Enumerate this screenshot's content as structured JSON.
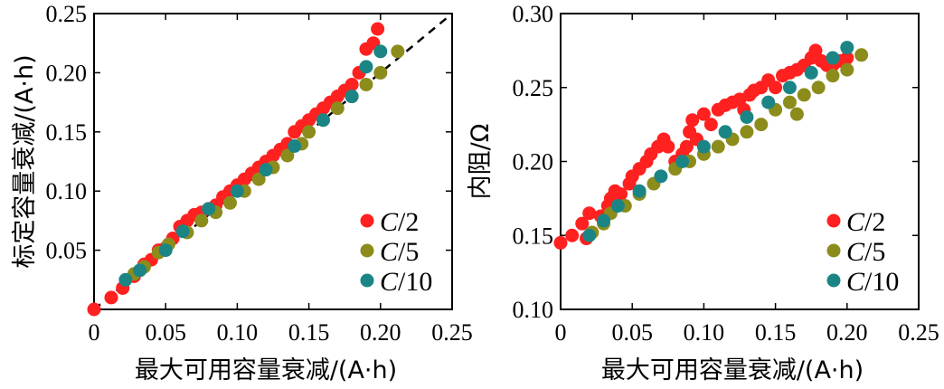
{
  "chart_data": [
    {
      "type": "scatter",
      "xlabel": "最大可用容量衰减/(A·h)",
      "ylabel": "标定容量衰减/(A·h)",
      "xlim": [
        0,
        0.25
      ],
      "ylim": [
        0,
        0.25
      ],
      "xticks": [
        "0",
        "0.05",
        "0.10",
        "0.15",
        "0.20",
        "0.25"
      ],
      "yticks": [
        "0.05",
        "0.10",
        "0.15",
        "0.20",
        "0.25"
      ],
      "legend_position": "bottom-right",
      "reference_line": {
        "style": "dashed",
        "from": [
          0,
          0
        ],
        "to": [
          0.25,
          0.25
        ]
      },
      "series": [
        {
          "name": "C/2",
          "color": "#ff2020",
          "points": [
            [
              0.0,
              0.0
            ],
            [
              0.012,
              0.01
            ],
            [
              0.02,
              0.018
            ],
            [
              0.028,
              0.028
            ],
            [
              0.035,
              0.038
            ],
            [
              0.04,
              0.042
            ],
            [
              0.045,
              0.05
            ],
            [
              0.05,
              0.052
            ],
            [
              0.055,
              0.06
            ],
            [
              0.06,
              0.07
            ],
            [
              0.065,
              0.075
            ],
            [
              0.07,
              0.08
            ],
            [
              0.075,
              0.082
            ],
            [
              0.08,
              0.085
            ],
            [
              0.085,
              0.088
            ],
            [
              0.09,
              0.095
            ],
            [
              0.095,
              0.1
            ],
            [
              0.1,
              0.105
            ],
            [
              0.105,
              0.11
            ],
            [
              0.11,
              0.115
            ],
            [
              0.115,
              0.12
            ],
            [
              0.12,
              0.125
            ],
            [
              0.125,
              0.13
            ],
            [
              0.13,
              0.135
            ],
            [
              0.135,
              0.14
            ],
            [
              0.14,
              0.15
            ],
            [
              0.145,
              0.155
            ],
            [
              0.15,
              0.16
            ],
            [
              0.155,
              0.165
            ],
            [
              0.16,
              0.17
            ],
            [
              0.165,
              0.175
            ],
            [
              0.17,
              0.18
            ],
            [
              0.175,
              0.185
            ],
            [
              0.18,
              0.19
            ],
            [
              0.185,
              0.2
            ],
            [
              0.19,
              0.22
            ],
            [
              0.195,
              0.225
            ],
            [
              0.198,
              0.237
            ]
          ]
        },
        {
          "name": "C/5",
          "color": "#8c8c1c",
          "points": [
            [
              0.028,
              0.03
            ],
            [
              0.035,
              0.036
            ],
            [
              0.045,
              0.048
            ],
            [
              0.052,
              0.055
            ],
            [
              0.065,
              0.065
            ],
            [
              0.075,
              0.075
            ],
            [
              0.085,
              0.082
            ],
            [
              0.095,
              0.09
            ],
            [
              0.105,
              0.1
            ],
            [
              0.115,
              0.11
            ],
            [
              0.125,
              0.12
            ],
            [
              0.135,
              0.13
            ],
            [
              0.145,
              0.14
            ],
            [
              0.15,
              0.15
            ],
            [
              0.16,
              0.16
            ],
            [
              0.17,
              0.17
            ],
            [
              0.18,
              0.18
            ],
            [
              0.19,
              0.19
            ],
            [
              0.2,
              0.2
            ],
            [
              0.212,
              0.218
            ]
          ]
        },
        {
          "name": "C/10",
          "color": "#1b8585",
          "points": [
            [
              0.022,
              0.025
            ],
            [
              0.032,
              0.033
            ],
            [
              0.05,
              0.05
            ],
            [
              0.062,
              0.066
            ],
            [
              0.08,
              0.085
            ],
            [
              0.1,
              0.1
            ],
            [
              0.12,
              0.118
            ],
            [
              0.14,
              0.138
            ],
            [
              0.16,
              0.16
            ],
            [
              0.18,
              0.18
            ],
            [
              0.19,
              0.205
            ],
            [
              0.2,
              0.218
            ]
          ]
        }
      ]
    },
    {
      "type": "scatter",
      "xlabel": "最大可用容量衰减/(A·h)",
      "ylabel": "内阻/Ω",
      "xlim": [
        0,
        0.25
      ],
      "ylim": [
        0.1,
        0.3
      ],
      "xticks": [
        "0",
        "0.05",
        "0.10",
        "0.15",
        "0.20",
        "0.25"
      ],
      "yticks": [
        "0.10",
        "0.15",
        "0.20",
        "0.25",
        "0.30"
      ],
      "legend_position": "bottom-right",
      "series": [
        {
          "name": "C/2",
          "color": "#ff2020",
          "points": [
            [
              0.0,
              0.145
            ],
            [
              0.008,
              0.15
            ],
            [
              0.015,
              0.158
            ],
            [
              0.018,
              0.148
            ],
            [
              0.02,
              0.165
            ],
            [
              0.028,
              0.163
            ],
            [
              0.033,
              0.17
            ],
            [
              0.035,
              0.175
            ],
            [
              0.038,
              0.18
            ],
            [
              0.042,
              0.178
            ],
            [
              0.048,
              0.185
            ],
            [
              0.05,
              0.19
            ],
            [
              0.055,
              0.195
            ],
            [
              0.06,
              0.2
            ],
            [
              0.063,
              0.205
            ],
            [
              0.068,
              0.21
            ],
            [
              0.072,
              0.215
            ],
            [
              0.075,
              0.21
            ],
            [
              0.08,
              0.2
            ],
            [
              0.085,
              0.205
            ],
            [
              0.088,
              0.21
            ],
            [
              0.09,
              0.22
            ],
            [
              0.092,
              0.228
            ],
            [
              0.095,
              0.215
            ],
            [
              0.1,
              0.232
            ],
            [
              0.105,
              0.225
            ],
            [
              0.11,
              0.235
            ],
            [
              0.115,
              0.238
            ],
            [
              0.12,
              0.24
            ],
            [
              0.125,
              0.242
            ],
            [
              0.128,
              0.235
            ],
            [
              0.132,
              0.245
            ],
            [
              0.135,
              0.248
            ],
            [
              0.14,
              0.25
            ],
            [
              0.145,
              0.255
            ],
            [
              0.15,
              0.25
            ],
            [
              0.155,
              0.258
            ],
            [
              0.16,
              0.26
            ],
            [
              0.165,
              0.262
            ],
            [
              0.17,
              0.265
            ],
            [
              0.175,
              0.27
            ],
            [
              0.178,
              0.275
            ],
            [
              0.182,
              0.268
            ],
            [
              0.186,
              0.265
            ],
            [
              0.19,
              0.265
            ],
            [
              0.195,
              0.268
            ],
            [
              0.2,
              0.27
            ]
          ]
        },
        {
          "name": "C/5",
          "color": "#8c8c1c",
          "points": [
            [
              0.022,
              0.152
            ],
            [
              0.03,
              0.158
            ],
            [
              0.035,
              0.165
            ],
            [
              0.045,
              0.17
            ],
            [
              0.055,
              0.178
            ],
            [
              0.065,
              0.185
            ],
            [
              0.08,
              0.195
            ],
            [
              0.09,
              0.2
            ],
            [
              0.1,
              0.205
            ],
            [
              0.11,
              0.21
            ],
            [
              0.12,
              0.215
            ],
            [
              0.13,
              0.22
            ],
            [
              0.14,
              0.225
            ],
            [
              0.15,
              0.235
            ],
            [
              0.16,
              0.24
            ],
            [
              0.165,
              0.232
            ],
            [
              0.17,
              0.245
            ],
            [
              0.18,
              0.25
            ],
            [
              0.19,
              0.258
            ],
            [
              0.2,
              0.262
            ],
            [
              0.21,
              0.272
            ]
          ]
        },
        {
          "name": "C/10",
          "color": "#1b8585",
          "points": [
            [
              0.02,
              0.15
            ],
            [
              0.03,
              0.16
            ],
            [
              0.04,
              0.17
            ],
            [
              0.055,
              0.18
            ],
            [
              0.07,
              0.19
            ],
            [
              0.085,
              0.2
            ],
            [
              0.1,
              0.21
            ],
            [
              0.115,
              0.22
            ],
            [
              0.13,
              0.23
            ],
            [
              0.145,
              0.24
            ],
            [
              0.16,
              0.25
            ],
            [
              0.175,
              0.26
            ],
            [
              0.19,
              0.27
            ],
            [
              0.2,
              0.277
            ]
          ]
        }
      ]
    }
  ]
}
